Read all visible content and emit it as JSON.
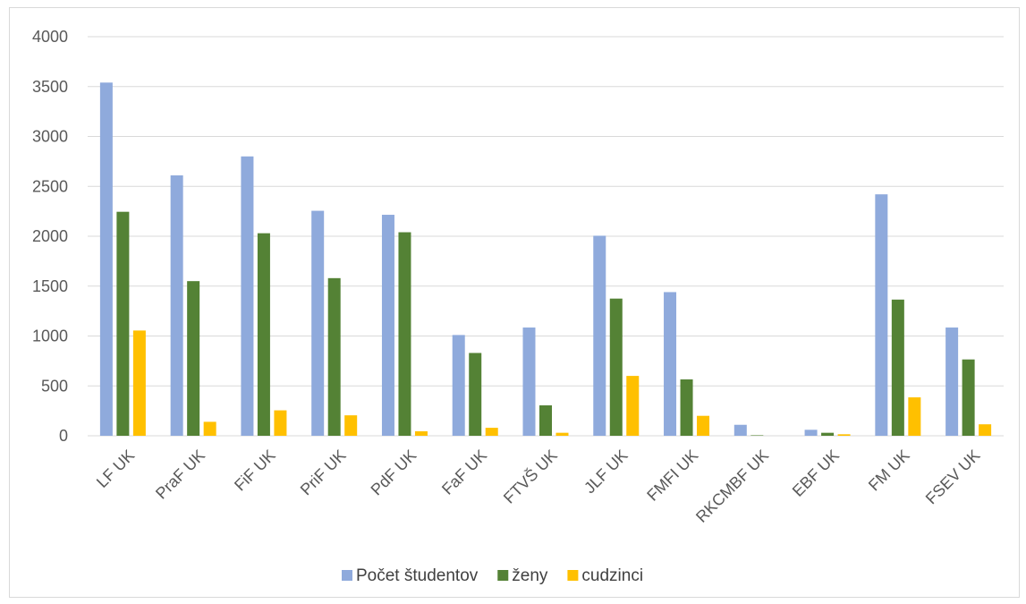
{
  "chart_data": {
    "type": "bar",
    "categories": [
      "LF UK",
      "PraF UK",
      "FiF UK",
      "PriF UK",
      "PdF UK",
      "FaF UK",
      "FTVŠ UK",
      "JLF UK",
      "FMFI UK",
      "RKCMBF UK",
      "EBF UK",
      "FM UK",
      "FSEV UK"
    ],
    "series": [
      {
        "name": "Počet študentov",
        "color": "#8faadc",
        "values": [
          3540,
          2610,
          2800,
          2255,
          2215,
          1010,
          1085,
          2005,
          1440,
          110,
          60,
          2420,
          1085
        ]
      },
      {
        "name": "ženy",
        "color": "#548235",
        "values": [
          2245,
          1550,
          2030,
          1580,
          2040,
          830,
          305,
          1375,
          565,
          5,
          30,
          1365,
          765
        ]
      },
      {
        "name": "cudzinci",
        "color": "#ffc000",
        "values": [
          1055,
          140,
          255,
          205,
          45,
          80,
          30,
          600,
          200,
          0,
          15,
          385,
          115
        ]
      }
    ],
    "ylim": [
      0,
      4000
    ],
    "yticks": [
      0,
      500,
      1000,
      1500,
      2000,
      2500,
      3000,
      3500,
      4000
    ],
    "grid": true,
    "legend_position": "bottom"
  }
}
